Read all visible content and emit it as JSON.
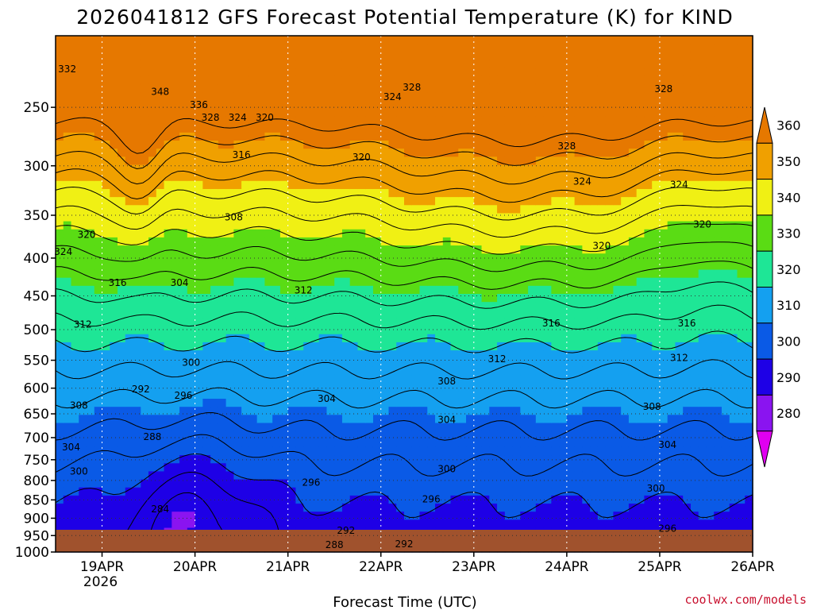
{
  "chart_data": {
    "type": "contour",
    "title": "2026041812 GFS Forecast Potential Temperature (K) for KIND",
    "xlabel": "Forecast Time (UTC)",
    "ylabel": "",
    "x_ticks": [
      {
        "label": "19APR",
        "sublabel": "2026",
        "hour": 12
      },
      {
        "label": "20APR",
        "hour": 36
      },
      {
        "label": "21APR",
        "hour": 60
      },
      {
        "label": "22APR",
        "hour": 84
      },
      {
        "label": "23APR",
        "hour": 108
      },
      {
        "label": "24APR",
        "hour": 132
      },
      {
        "label": "25APR",
        "hour": 156
      },
      {
        "label": "26APR",
        "hour": 180
      }
    ],
    "xlim_hours": [
      0,
      180
    ],
    "y_ticks": [
      "250",
      "300",
      "350",
      "400",
      "450",
      "500",
      "550",
      "600",
      "650",
      "700",
      "750",
      "800",
      "850",
      "900",
      "950",
      "1000"
    ],
    "ylim_hpa": [
      200,
      1000
    ],
    "colorbar": {
      "levels": [
        280,
        290,
        300,
        310,
        320,
        330,
        340,
        350,
        360
      ],
      "labels": [
        "280",
        "290",
        "300",
        "310",
        "320",
        "330",
        "340",
        "350",
        "360"
      ],
      "colors": [
        "#e000f0",
        "#8a14f0",
        "#1e00e6",
        "#0a5ae6",
        "#14a0f0",
        "#1ee696",
        "#5adc14",
        "#f0f014",
        "#f0a000",
        "#e67800"
      ]
    },
    "contour_labels": [
      {
        "text": "332",
        "hour": 3,
        "p": 222
      },
      {
        "text": "348",
        "hour": 27,
        "p": 238
      },
      {
        "text": "336",
        "hour": 37,
        "p": 248
      },
      {
        "text": "328",
        "hour": 40,
        "p": 258
      },
      {
        "text": "324",
        "hour": 47,
        "p": 258
      },
      {
        "text": "320",
        "hour": 54,
        "p": 258
      },
      {
        "text": "316",
        "hour": 48,
        "p": 290
      },
      {
        "text": "308",
        "hour": 46,
        "p": 352
      },
      {
        "text": "304",
        "hour": 32,
        "p": 432
      },
      {
        "text": "300",
        "hour": 35,
        "p": 554
      },
      {
        "text": "296",
        "hour": 33,
        "p": 614
      },
      {
        "text": "292",
        "hour": 22,
        "p": 602
      },
      {
        "text": "288",
        "hour": 25,
        "p": 698
      },
      {
        "text": "284",
        "hour": 27,
        "p": 875
      },
      {
        "text": "320",
        "hour": 8,
        "p": 372
      },
      {
        "text": "324",
        "hour": 2,
        "p": 392
      },
      {
        "text": "316",
        "hour": 16,
        "p": 432
      },
      {
        "text": "312",
        "hour": 7,
        "p": 492
      },
      {
        "text": "308",
        "hour": 6,
        "p": 633
      },
      {
        "text": "304",
        "hour": 4,
        "p": 721
      },
      {
        "text": "300",
        "hour": 6,
        "p": 778
      },
      {
        "text": "312",
        "hour": 64,
        "p": 442
      },
      {
        "text": "320",
        "hour": 79,
        "p": 292
      },
      {
        "text": "324",
        "hour": 87,
        "p": 242
      },
      {
        "text": "328",
        "hour": 92,
        "p": 235
      },
      {
        "text": "304",
        "hour": 70,
        "p": 620
      },
      {
        "text": "308",
        "hour": 101,
        "p": 587
      },
      {
        "text": "304",
        "hour": 101,
        "p": 662
      },
      {
        "text": "300",
        "hour": 101,
        "p": 772
      },
      {
        "text": "296",
        "hour": 97,
        "p": 848
      },
      {
        "text": "296",
        "hour": 66,
        "p": 805
      },
      {
        "text": "292",
        "hour": 75,
        "p": 935
      },
      {
        "text": "288",
        "hour": 72,
        "p": 978
      },
      {
        "text": "292",
        "hour": 90,
        "p": 975
      },
      {
        "text": "312",
        "hour": 114,
        "p": 548
      },
      {
        "text": "316",
        "hour": 128,
        "p": 490
      },
      {
        "text": "328",
        "hour": 132,
        "p": 282
      },
      {
        "text": "324",
        "hour": 136,
        "p": 315
      },
      {
        "text": "320",
        "hour": 141,
        "p": 385
      },
      {
        "text": "308",
        "hour": 154,
        "p": 636
      },
      {
        "text": "304",
        "hour": 158,
        "p": 716
      },
      {
        "text": "300",
        "hour": 155,
        "p": 820
      },
      {
        "text": "296",
        "hour": 158,
        "p": 930
      },
      {
        "text": "312",
        "hour": 161,
        "p": 546
      },
      {
        "text": "316",
        "hour": 163,
        "p": 490
      },
      {
        "text": "320",
        "hour": 167,
        "p": 360
      },
      {
        "text": "324",
        "hour": 161,
        "p": 318
      },
      {
        "text": "328",
        "hour": 157,
        "p": 236
      }
    ]
  },
  "credit": "coolwx.com/models"
}
